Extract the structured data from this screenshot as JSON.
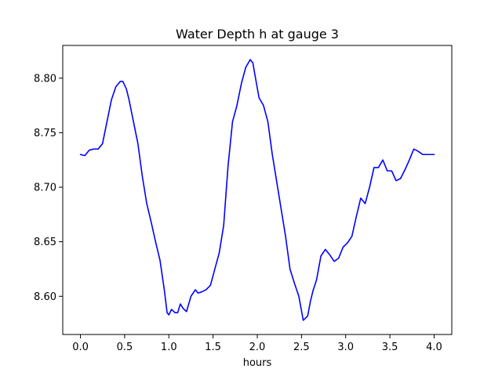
{
  "chart_data": {
    "type": "line",
    "title": "Water Depth h at gauge 3",
    "xlabel": "hours",
    "ylabel": "",
    "xlim": [
      -0.2,
      4.2
    ],
    "ylim": [
      8.565,
      8.83
    ],
    "xticks": [
      0.0,
      0.5,
      1.0,
      1.5,
      2.0,
      2.5,
      3.0,
      3.5,
      4.0
    ],
    "xtick_labels": [
      "0.0",
      "0.5",
      "1.0",
      "1.5",
      "2.0",
      "2.5",
      "3.0",
      "3.5",
      "4.0"
    ],
    "yticks": [
      8.6,
      8.65,
      8.7,
      8.75,
      8.8
    ],
    "ytick_labels": [
      "8.60",
      "8.65",
      "8.70",
      "8.75",
      "8.80"
    ],
    "grid": false,
    "series": [
      {
        "color": "#0000ff",
        "x": [
          0.0,
          0.05,
          0.1,
          0.15,
          0.2,
          0.25,
          0.3,
          0.35,
          0.4,
          0.45,
          0.48,
          0.52,
          0.55,
          0.6,
          0.65,
          0.7,
          0.75,
          0.8,
          0.85,
          0.9,
          0.95,
          0.98,
          1.0,
          1.03,
          1.07,
          1.1,
          1.13,
          1.16,
          1.2,
          1.25,
          1.3,
          1.33,
          1.37,
          1.42,
          1.47,
          1.52,
          1.57,
          1.62,
          1.67,
          1.72,
          1.77,
          1.82,
          1.87,
          1.92,
          1.95,
          1.98,
          2.02,
          2.07,
          2.12,
          2.17,
          2.22,
          2.27,
          2.32,
          2.37,
          2.42,
          2.47,
          2.52,
          2.57,
          2.6,
          2.63,
          2.67,
          2.72,
          2.77,
          2.82,
          2.87,
          2.92,
          2.97,
          3.02,
          3.07,
          3.12,
          3.17,
          3.22,
          3.27,
          3.32,
          3.37,
          3.42,
          3.47,
          3.52,
          3.57,
          3.62,
          3.67,
          3.72,
          3.77,
          3.82,
          3.87,
          3.92,
          3.97,
          4.0
        ],
        "y": [
          8.73,
          8.729,
          8.734,
          8.735,
          8.735,
          8.74,
          8.76,
          8.78,
          8.792,
          8.797,
          8.797,
          8.79,
          8.78,
          8.76,
          8.74,
          8.71,
          8.685,
          8.668,
          8.65,
          8.633,
          8.605,
          8.585,
          8.583,
          8.588,
          8.585,
          8.585,
          8.593,
          8.589,
          8.586,
          8.6,
          8.606,
          8.603,
          8.604,
          8.606,
          8.61,
          8.625,
          8.64,
          8.665,
          8.72,
          8.76,
          8.775,
          8.795,
          8.81,
          8.817,
          8.814,
          8.8,
          8.782,
          8.775,
          8.76,
          8.73,
          8.705,
          8.68,
          8.655,
          8.625,
          8.612,
          8.6,
          8.578,
          8.582,
          8.595,
          8.605,
          8.615,
          8.637,
          8.643,
          8.638,
          8.632,
          8.635,
          8.645,
          8.649,
          8.655,
          8.673,
          8.69,
          8.685,
          8.7,
          8.718,
          8.718,
          8.725,
          8.715,
          8.715,
          8.706,
          8.708,
          8.716,
          8.725,
          8.735,
          8.733,
          8.73,
          8.73,
          8.73,
          8.73
        ]
      }
    ]
  }
}
